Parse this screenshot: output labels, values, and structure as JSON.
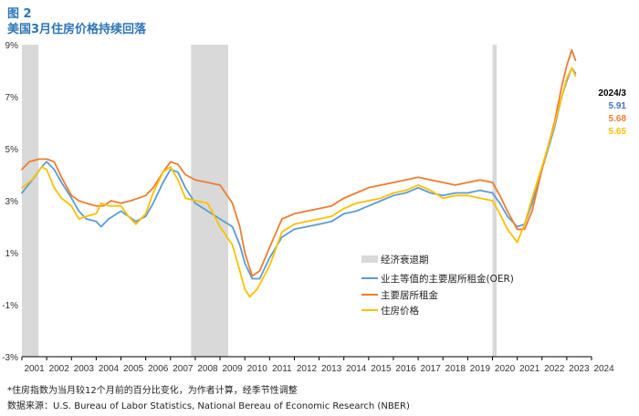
{
  "figure_label": "图 2",
  "title": "美国3月住房价格持续回落",
  "notes": [
    "*住房指数为当月较12个月前的百分比变化，为作者计算，经季节性调整",
    "数据来源：U.S. Bureau of Labor Statistics, National Bereau of Economic Research (NBER)"
  ],
  "colors": {
    "oer": "#5b9bd5",
    "rent": "#ed7d31",
    "housing": "#ffc000",
    "recession": "#d9d9d9",
    "axis": "#000000"
  },
  "chart_data": {
    "type": "line",
    "title": "美国3月住房价格持续回落",
    "xlabel": "",
    "ylabel": "",
    "xlim": [
      2001,
      2024
    ],
    "ylim": [
      -3,
      9
    ],
    "yticks": [
      "-3%",
      "-1%",
      "1%",
      "3%",
      "5%",
      "7%",
      "9%"
    ],
    "ytick_values": [
      -3,
      -1,
      1,
      3,
      5,
      7,
      9
    ],
    "xticks": [
      "2001",
      "2002",
      "2003",
      "2004",
      "2005",
      "2006",
      "2007",
      "2008",
      "2009",
      "2010",
      "2011",
      "2012",
      "2013",
      "2014",
      "2015",
      "2016",
      "2017",
      "2018",
      "2019",
      "2020",
      "2021",
      "2022",
      "2023",
      "2024"
    ],
    "grid": false,
    "legend_position": "center-right",
    "recessions": [
      {
        "label": "经济衰退期",
        "start": 2001.0,
        "end": 2001.67
      },
      {
        "start": 2007.83,
        "end": 2009.33
      },
      {
        "start": 2020.0,
        "end": 2020.17
      }
    ],
    "annotation": {
      "header": "2024/3",
      "values": [
        {
          "series": "业主等值的主要居所租金(OER)",
          "text": "5.91"
        },
        {
          "series": "主要居所租金",
          "text": "5.68"
        },
        {
          "series": "住房价格",
          "text": "5.65"
        }
      ]
    },
    "series": [
      {
        "name": "业主等值的主要居所租金(OER)",
        "color": "#5b9bd5",
        "points": [
          [
            2001.0,
            3.3
          ],
          [
            2001.5,
            3.9
          ],
          [
            2001.8,
            4.3
          ],
          [
            2002.0,
            4.5
          ],
          [
            2002.3,
            4.2
          ],
          [
            2002.6,
            3.7
          ],
          [
            2003.0,
            3.1
          ],
          [
            2003.3,
            2.6
          ],
          [
            2003.6,
            2.3
          ],
          [
            2004.0,
            2.2
          ],
          [
            2004.2,
            2.0
          ],
          [
            2004.5,
            2.3
          ],
          [
            2005.0,
            2.6
          ],
          [
            2005.3,
            2.4
          ],
          [
            2005.6,
            2.2
          ],
          [
            2006.0,
            2.4
          ],
          [
            2006.3,
            2.9
          ],
          [
            2006.7,
            3.7
          ],
          [
            2007.0,
            4.2
          ],
          [
            2007.3,
            4.1
          ],
          [
            2007.6,
            3.5
          ],
          [
            2008.0,
            2.9
          ],
          [
            2008.5,
            2.6
          ],
          [
            2009.0,
            2.3
          ],
          [
            2009.5,
            2.0
          ],
          [
            2009.8,
            1.3
          ],
          [
            2010.0,
            0.6
          ],
          [
            2010.3,
            0.0
          ],
          [
            2010.6,
            0.0
          ],
          [
            2011.0,
            0.8
          ],
          [
            2011.5,
            1.6
          ],
          [
            2012.0,
            1.9
          ],
          [
            2012.5,
            2.0
          ],
          [
            2013.0,
            2.1
          ],
          [
            2013.5,
            2.2
          ],
          [
            2014.0,
            2.5
          ],
          [
            2014.5,
            2.6
          ],
          [
            2015.0,
            2.8
          ],
          [
            2015.5,
            3.0
          ],
          [
            2016.0,
            3.2
          ],
          [
            2016.5,
            3.3
          ],
          [
            2017.0,
            3.5
          ],
          [
            2017.5,
            3.3
          ],
          [
            2018.0,
            3.2
          ],
          [
            2018.5,
            3.3
          ],
          [
            2019.0,
            3.3
          ],
          [
            2019.5,
            3.4
          ],
          [
            2020.0,
            3.3
          ],
          [
            2020.3,
            2.9
          ],
          [
            2020.6,
            2.4
          ],
          [
            2021.0,
            2.0
          ],
          [
            2021.3,
            2.1
          ],
          [
            2021.6,
            2.9
          ],
          [
            2022.0,
            4.2
          ],
          [
            2022.5,
            5.8
          ],
          [
            2022.8,
            7.0
          ],
          [
            2023.0,
            7.6
          ],
          [
            2023.2,
            8.1
          ],
          [
            2023.35,
            7.9
          ]
        ]
      },
      {
        "name": "主要居所租金",
        "color": "#ed7d31",
        "points": [
          [
            2001.0,
            4.2
          ],
          [
            2001.3,
            4.5
          ],
          [
            2001.7,
            4.6
          ],
          [
            2002.0,
            4.6
          ],
          [
            2002.3,
            4.5
          ],
          [
            2002.6,
            3.9
          ],
          [
            2003.0,
            3.2
          ],
          [
            2003.3,
            3.0
          ],
          [
            2003.6,
            2.9
          ],
          [
            2004.0,
            2.8
          ],
          [
            2004.3,
            2.8
          ],
          [
            2004.6,
            3.0
          ],
          [
            2005.0,
            2.9
          ],
          [
            2005.4,
            3.0
          ],
          [
            2005.7,
            3.1
          ],
          [
            2006.0,
            3.2
          ],
          [
            2006.3,
            3.5
          ],
          [
            2006.7,
            4.1
          ],
          [
            2007.0,
            4.5
          ],
          [
            2007.3,
            4.4
          ],
          [
            2007.6,
            4.0
          ],
          [
            2008.0,
            3.8
          ],
          [
            2008.5,
            3.7
          ],
          [
            2009.0,
            3.6
          ],
          [
            2009.5,
            2.9
          ],
          [
            2009.8,
            2.0
          ],
          [
            2010.0,
            1.0
          ],
          [
            2010.3,
            0.1
          ],
          [
            2010.6,
            0.3
          ],
          [
            2011.0,
            1.2
          ],
          [
            2011.5,
            2.3
          ],
          [
            2012.0,
            2.5
          ],
          [
            2012.5,
            2.6
          ],
          [
            2013.0,
            2.7
          ],
          [
            2013.5,
            2.8
          ],
          [
            2014.0,
            3.1
          ],
          [
            2014.5,
            3.3
          ],
          [
            2015.0,
            3.5
          ],
          [
            2015.5,
            3.6
          ],
          [
            2016.0,
            3.7
          ],
          [
            2016.5,
            3.8
          ],
          [
            2017.0,
            3.9
          ],
          [
            2017.5,
            3.8
          ],
          [
            2018.0,
            3.7
          ],
          [
            2018.5,
            3.6
          ],
          [
            2019.0,
            3.7
          ],
          [
            2019.5,
            3.8
          ],
          [
            2020.0,
            3.7
          ],
          [
            2020.3,
            3.2
          ],
          [
            2020.6,
            2.6
          ],
          [
            2021.0,
            1.9
          ],
          [
            2021.3,
            1.9
          ],
          [
            2021.6,
            2.6
          ],
          [
            2022.0,
            4.2
          ],
          [
            2022.5,
            6.0
          ],
          [
            2022.8,
            7.4
          ],
          [
            2023.0,
            8.2
          ],
          [
            2023.2,
            8.8
          ],
          [
            2023.35,
            8.4
          ]
        ]
      },
      {
        "name": "住房价格",
        "color": "#ffc000",
        "points": [
          [
            2001.0,
            3.5
          ],
          [
            2001.4,
            3.8
          ],
          [
            2001.8,
            4.3
          ],
          [
            2002.0,
            4.2
          ],
          [
            2002.3,
            3.5
          ],
          [
            2002.6,
            3.1
          ],
          [
            2003.0,
            2.8
          ],
          [
            2003.3,
            2.3
          ],
          [
            2003.6,
            2.4
          ],
          [
            2004.0,
            2.5
          ],
          [
            2004.2,
            2.9
          ],
          [
            2004.5,
            2.8
          ],
          [
            2005.0,
            2.8
          ],
          [
            2005.3,
            2.4
          ],
          [
            2005.6,
            2.1
          ],
          [
            2006.0,
            2.5
          ],
          [
            2006.3,
            3.3
          ],
          [
            2006.7,
            4.1
          ],
          [
            2007.0,
            4.3
          ],
          [
            2007.3,
            3.8
          ],
          [
            2007.6,
            3.1
          ],
          [
            2008.0,
            3.0
          ],
          [
            2008.5,
            2.9
          ],
          [
            2009.0,
            2.0
          ],
          [
            2009.5,
            1.3
          ],
          [
            2009.8,
            0.3
          ],
          [
            2010.0,
            -0.4
          ],
          [
            2010.2,
            -0.7
          ],
          [
            2010.5,
            -0.4
          ],
          [
            2011.0,
            0.5
          ],
          [
            2011.5,
            1.8
          ],
          [
            2012.0,
            2.1
          ],
          [
            2012.5,
            2.2
          ],
          [
            2013.0,
            2.3
          ],
          [
            2013.5,
            2.4
          ],
          [
            2014.0,
            2.7
          ],
          [
            2014.5,
            2.9
          ],
          [
            2015.0,
            3.0
          ],
          [
            2015.5,
            3.1
          ],
          [
            2016.0,
            3.3
          ],
          [
            2016.5,
            3.4
          ],
          [
            2017.0,
            3.6
          ],
          [
            2017.5,
            3.4
          ],
          [
            2018.0,
            3.1
          ],
          [
            2018.5,
            3.2
          ],
          [
            2019.0,
            3.2
          ],
          [
            2019.5,
            3.1
          ],
          [
            2020.0,
            3.0
          ],
          [
            2020.3,
            2.5
          ],
          [
            2020.6,
            1.9
          ],
          [
            2021.0,
            1.4
          ],
          [
            2021.3,
            2.1
          ],
          [
            2021.6,
            3.1
          ],
          [
            2022.0,
            4.3
          ],
          [
            2022.5,
            5.9
          ],
          [
            2022.8,
            7.0
          ],
          [
            2023.0,
            7.7
          ],
          [
            2023.2,
            8.1
          ],
          [
            2023.35,
            7.8
          ]
        ]
      }
    ]
  }
}
